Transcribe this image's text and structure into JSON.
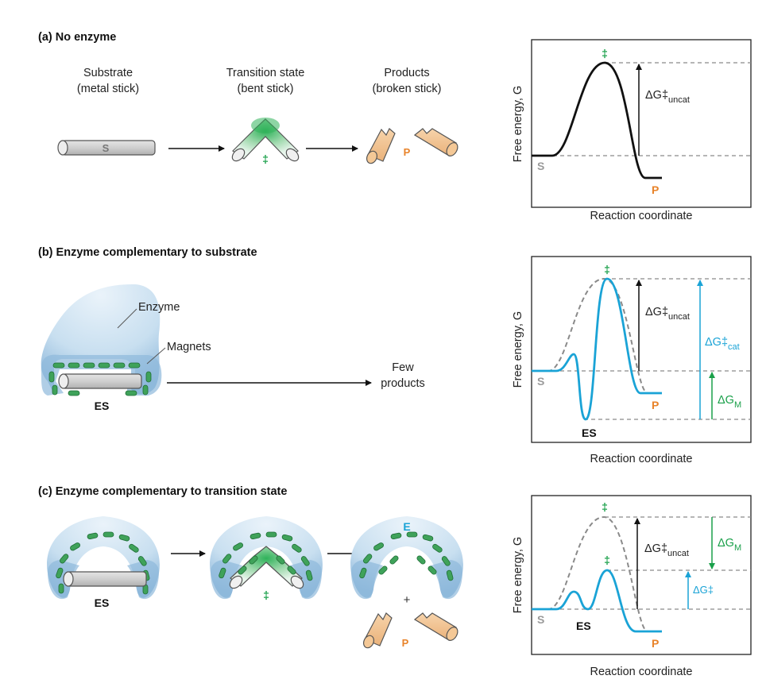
{
  "panels": {
    "a": {
      "title": "(a) No enzyme",
      "substrate_label_1": "Substrate",
      "substrate_label_2": "(metal stick)",
      "transition_label_1": "Transition state",
      "transition_label_2": "(bent stick)",
      "products_label_1": "Products",
      "products_label_2": "(broken stick)",
      "stick_letter": "S",
      "dagger": "‡",
      "product_letter": "P"
    },
    "b": {
      "title": "(b) Enzyme complementary to substrate",
      "enzyme_label": "Enzyme",
      "magnets_label": "Magnets",
      "es_label": "ES",
      "few_1": "Few",
      "few_2": "products"
    },
    "c": {
      "title": "(c) Enzyme complementary to transition state",
      "es_label": "ES",
      "dagger": "‡",
      "enzyme_letter": "E",
      "plus": "+",
      "product_letter": "P"
    }
  },
  "graphs": {
    "ylabel": "Free energy, G",
    "xlabel": "Reaction coordinate",
    "s_label": "S",
    "p_label": "P",
    "es_label": "ES",
    "dagger": "‡",
    "delta_g_uncat": "ΔG‡",
    "uncat_sub": "uncat",
    "delta_g_cat": "ΔG‡",
    "cat_sub": "cat",
    "delta_g_m": "ΔG",
    "m_sub": "M",
    "delta_g": "ΔG‡"
  },
  "colors": {
    "blue": "#1aa3d6",
    "green": "#1aa04a",
    "orange": "#e8832a",
    "grey_dash": "#8a8a8a",
    "enzyme_light": "#d6e8f5",
    "enzyme_dark": "#8fb9dc",
    "magnet": "#3fa25a",
    "stick": "#cfcfcf",
    "product": "#f2c28f"
  }
}
